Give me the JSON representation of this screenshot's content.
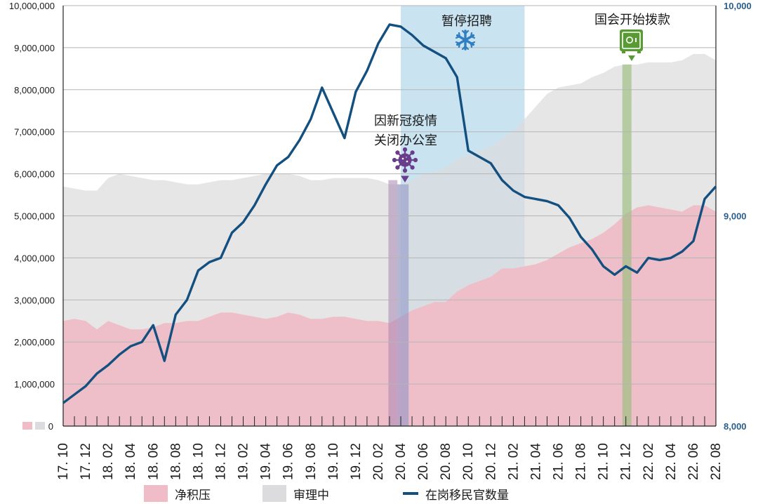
{
  "colors": {
    "backlog": "#f0bcc7",
    "processing": "#dcdcde",
    "officers": "#14507f",
    "hiring_freeze": "#c9e3f1",
    "covid": "#a786b4",
    "funding": "#9fbf84",
    "icon_green": "#5a9a35",
    "icon_purple": "#6a3d8c",
    "icon_blue": "#2f7ec1"
  },
  "legend": {
    "backlog": "净积压",
    "processing": "审理中",
    "officers": "在岗移民官数量"
  },
  "annotations": {
    "hiring_freeze": "暂停招聘",
    "covid_line1": "因新冠疫情",
    "covid_line2": "关闭办公室",
    "funding": "国会开始拨款"
  },
  "chart_data": {
    "type": "area",
    "x": [
      "17.10",
      "17.11",
      "17.12",
      "18.01",
      "18.02",
      "18.03",
      "18.04",
      "18.05",
      "18.06",
      "18.07",
      "18.08",
      "18.09",
      "18.10",
      "18.11",
      "18.12",
      "19.01",
      "19.02",
      "19.03",
      "19.04",
      "19.05",
      "19.06",
      "19.07",
      "19.08",
      "19.09",
      "19.10",
      "19.11",
      "19.12",
      "20.01",
      "20.02",
      "20.03",
      "20.04",
      "20.05",
      "20.06",
      "20.07",
      "20.08",
      "20.09",
      "20.10",
      "20.11",
      "20.12",
      "21.01",
      "21.02",
      "21.03",
      "21.04",
      "21.05",
      "21.06",
      "21.07",
      "21.08",
      "21.09",
      "21.10",
      "21.11",
      "21.12",
      "22.01",
      "22.02",
      "22.03",
      "22.04",
      "22.05",
      "22.06",
      "22.07",
      "22.08"
    ],
    "x_tick_labels": [
      "17. 10",
      "17. 12",
      "18. 02",
      "18. 04",
      "18. 06",
      "18. 08",
      "18. 10",
      "18. 12",
      "19. 02",
      "19. 04",
      "19. 06",
      "19. 08",
      "19. 10",
      "19. 12",
      "20. 02",
      "20. 04",
      "20. 06",
      "20. 08",
      "20. 10",
      "20. 12",
      "21. 02",
      "21. 04",
      "21. 06",
      "21. 08",
      "21. 10",
      "21. 12",
      "22. 02",
      "22. 04",
      "22. 06",
      "22. 08"
    ],
    "y_left_ticks": [
      "0",
      "1,000,000",
      "2,000,000",
      "3,000,000",
      "4,000,000",
      "5,000,000",
      "6,000,000",
      "7,000,000",
      "8,000,000",
      "9,000,000",
      "10,000,000"
    ],
    "y_right_ticks": [
      "8,000",
      "9,000",
      "10,000"
    ],
    "ylim_left": [
      0,
      10000000
    ],
    "ylim_right": [
      8000,
      10000
    ],
    "series": [
      {
        "name": "净积压",
        "axis": "left",
        "values": [
          2500000,
          2550000,
          2500000,
          2300000,
          2500000,
          2400000,
          2300000,
          2300000,
          2350000,
          2450000,
          2450000,
          2500000,
          2500000,
          2600000,
          2700000,
          2700000,
          2650000,
          2600000,
          2550000,
          2600000,
          2700000,
          2650000,
          2550000,
          2550000,
          2600000,
          2600000,
          2550000,
          2500000,
          2500000,
          2450000,
          2600000,
          2750000,
          2850000,
          2950000,
          2950000,
          3200000,
          3350000,
          3450000,
          3550000,
          3750000,
          3750000,
          3800000,
          3850000,
          3950000,
          4100000,
          4250000,
          4350000,
          4450000,
          4600000,
          4800000,
          5050000,
          5200000,
          5250000,
          5200000,
          5150000,
          5100000,
          5250000,
          5250000,
          5100000
        ]
      },
      {
        "name": "审理中",
        "axis": "left",
        "values": [
          5700000,
          5650000,
          5600000,
          5600000,
          5900000,
          6000000,
          5950000,
          5900000,
          5850000,
          5850000,
          5800000,
          5750000,
          5750000,
          5800000,
          5850000,
          5850000,
          5900000,
          5950000,
          6000000,
          6000000,
          6000000,
          5950000,
          5850000,
          5850000,
          5900000,
          5900000,
          5900000,
          5900000,
          5850000,
          5750000,
          5750000,
          5850000,
          6000000,
          6050000,
          6150000,
          6350000,
          6450000,
          6550000,
          6650000,
          6850000,
          7000000,
          7300000,
          7600000,
          7900000,
          8050000,
          8100000,
          8150000,
          8300000,
          8400000,
          8550000,
          8600000,
          8600000,
          8650000,
          8650000,
          8650000,
          8700000,
          8850000,
          8850000,
          8700000
        ]
      },
      {
        "name": "在岗移民官数量",
        "axis": "right",
        "values": [
          8110,
          8150,
          8190,
          8250,
          8290,
          8340,
          8380,
          8400,
          8480,
          8310,
          8530,
          8600,
          8740,
          8780,
          8800,
          8920,
          8970,
          9050,
          9150,
          9240,
          9280,
          9360,
          9460,
          9610,
          9490,
          9370,
          9590,
          9690,
          9820,
          9910,
          9900,
          9860,
          9810,
          9780,
          9750,
          9660,
          9310,
          9280,
          9250,
          9170,
          9120,
          9090,
          9080,
          9070,
          9050,
          8990,
          8900,
          8840,
          8760,
          8720,
          8760,
          8730,
          8800,
          8790,
          8800,
          8830,
          8880,
          9080,
          9140
        ]
      }
    ],
    "shaded_regions": [
      {
        "label": "暂停招聘",
        "from": "20.04",
        "to": "21.03"
      },
      {
        "label": "因新冠疫情 关闭办公室",
        "from": "20.03",
        "to": "20.05"
      },
      {
        "label": "国会开始拨款",
        "from": "21.12",
        "to": "21.12"
      }
    ]
  }
}
